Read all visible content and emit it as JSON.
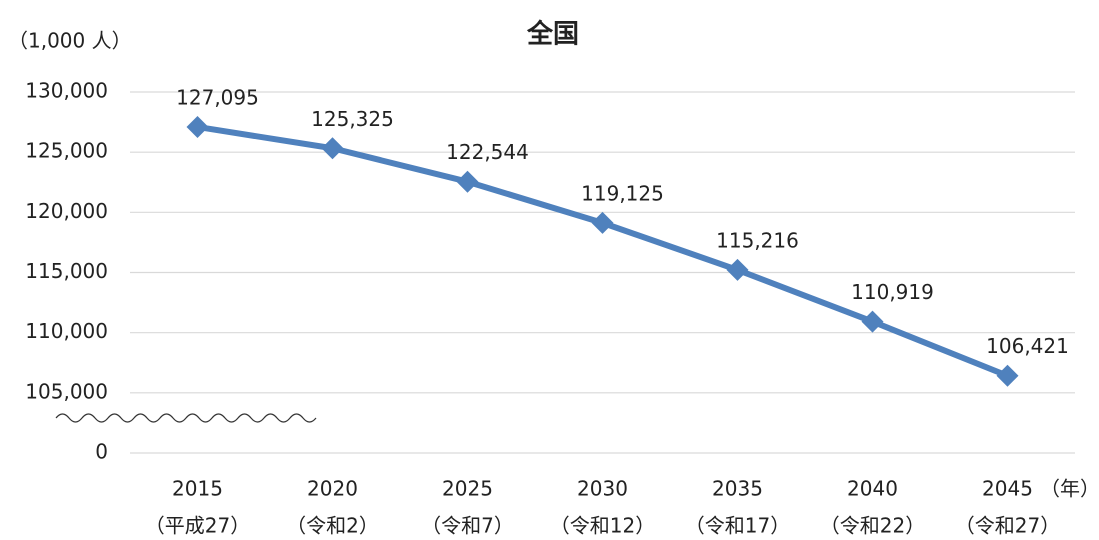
{
  "chart_data": {
    "type": "line",
    "title": "全国",
    "y_unit": "（1,000 人）",
    "x_unit": "（年）",
    "categories": [
      "2015",
      "2020",
      "2025",
      "2030",
      "2035",
      "2040",
      "2045"
    ],
    "era_labels": [
      "（平成27）",
      "（令和2）",
      "（令和7）",
      "（令和12）",
      "（令和17）",
      "（令和22）",
      "（令和27）"
    ],
    "series": [
      {
        "name": "全国",
        "color": "#4f81bd",
        "values": [
          127095,
          125325,
          122544,
          119125,
          115216,
          110919,
          106421
        ],
        "value_labels": [
          "127,095",
          "125,325",
          "122,544",
          "119,125",
          "115,216",
          "110,919",
          "106,421"
        ]
      }
    ],
    "ylim": [
      0,
      130000
    ],
    "ybreak": [
      0,
      105000
    ],
    "yticks": [
      0,
      {
        "value": 105000,
        "label": "105,000"
      },
      {
        "value": 110000,
        "label": "110,000"
      },
      {
        "value": 115000,
        "label": "115,000"
      },
      {
        "value": 120000,
        "label": "120,000"
      },
      {
        "value": 125000,
        "label": "125,000"
      },
      {
        "value": 130000,
        "label": "130,000"
      }
    ],
    "grid": true
  }
}
